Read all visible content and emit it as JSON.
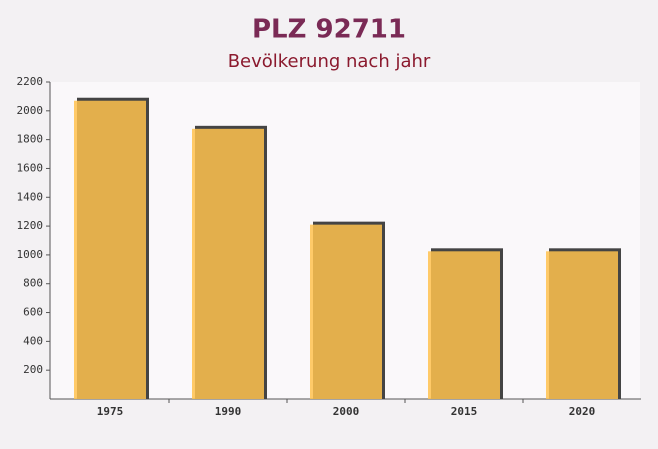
{
  "chart_data": {
    "type": "bar",
    "title": "PLZ 92711",
    "subtitle": "Bevölkerung nach jahr",
    "categories": [
      "1975",
      "1990",
      "2000",
      "2015",
      "2020"
    ],
    "values": [
      2070,
      1875,
      1210,
      1025,
      1025
    ],
    "color": "#ffc24d",
    "ylim": [
      0,
      2200
    ],
    "yticks": [
      200,
      400,
      600,
      800,
      1000,
      1200,
      1400,
      1600,
      1800,
      2000,
      2200
    ]
  }
}
